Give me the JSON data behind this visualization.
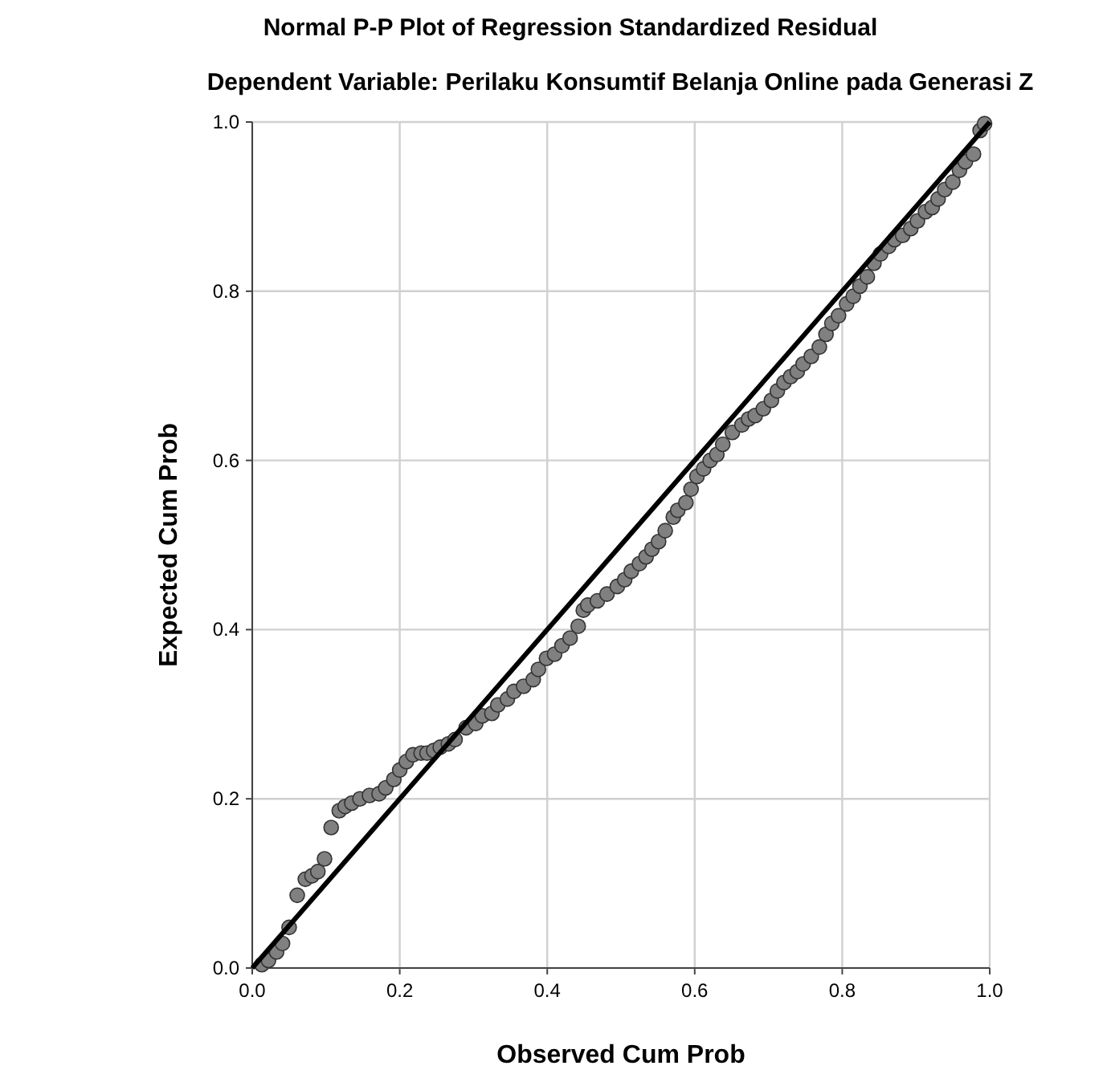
{
  "chart_data": {
    "type": "scatter",
    "title": "Normal P-P Plot of Regression Standardized Residual",
    "subtitle": "Dependent Variable: Perilaku Konsumtif Belanja Online pada Generasi Z",
    "xlabel": "Observed Cum Prob",
    "ylabel": "Expected Cum Prob",
    "xlim": [
      0,
      1
    ],
    "ylim": [
      0,
      1
    ],
    "xticks": [
      {
        "value": 0,
        "label": "0.0"
      },
      0.2,
      0.4,
      0.6,
      0.8,
      {
        "value": 1,
        "label": "1.0"
      }
    ],
    "yticks": [
      {
        "value": 0,
        "label": "0.0"
      },
      0.2,
      0.4,
      0.6,
      0.8,
      {
        "value": 1,
        "label": "1.0"
      }
    ],
    "grid": true,
    "series": [
      {
        "color": "#808080",
        "marker": "circle",
        "x": [
          0.013,
          0.022,
          0.033,
          0.041,
          0.05,
          0.061,
          0.072,
          0.081,
          0.089,
          0.098,
          0.107,
          0.118,
          0.126,
          0.135,
          0.146,
          0.159,
          0.172,
          0.181,
          0.192,
          0.2,
          0.209,
          0.218,
          0.229,
          0.237,
          0.246,
          0.255,
          0.266,
          0.275,
          0.29,
          0.303,
          0.312,
          0.325,
          0.333,
          0.346,
          0.355,
          0.368,
          0.381,
          0.388,
          0.399,
          0.41,
          0.42,
          0.431,
          0.442,
          0.449,
          0.455,
          0.468,
          0.481,
          0.495,
          0.505,
          0.514,
          0.525,
          0.534,
          0.542,
          0.551,
          0.56,
          0.571,
          0.577,
          0.588,
          0.595,
          0.603,
          0.612,
          0.621,
          0.63,
          0.638,
          0.651,
          0.664,
          0.673,
          0.682,
          0.693,
          0.704,
          0.712,
          0.721,
          0.73,
          0.739,
          0.747,
          0.758,
          0.769,
          0.778,
          0.786,
          0.795,
          0.806,
          0.815,
          0.824,
          0.834,
          0.843,
          0.852,
          0.863,
          0.871,
          0.882,
          0.893,
          0.902,
          0.913,
          0.922,
          0.93,
          0.939,
          0.95,
          0.959,
          0.967,
          0.978,
          0.987,
          0.993
        ],
        "values": [
          0.004,
          0.009,
          0.019,
          0.029,
          0.048,
          0.086,
          0.105,
          0.109,
          0.114,
          0.129,
          0.166,
          0.186,
          0.191,
          0.195,
          0.2,
          0.204,
          0.206,
          0.213,
          0.223,
          0.234,
          0.244,
          0.252,
          0.254,
          0.254,
          0.257,
          0.261,
          0.265,
          0.27,
          0.284,
          0.289,
          0.298,
          0.301,
          0.311,
          0.318,
          0.327,
          0.333,
          0.341,
          0.353,
          0.366,
          0.371,
          0.381,
          0.39,
          0.404,
          0.423,
          0.429,
          0.434,
          0.442,
          0.451,
          0.459,
          0.469,
          0.478,
          0.486,
          0.495,
          0.504,
          0.517,
          0.533,
          0.541,
          0.55,
          0.566,
          0.581,
          0.59,
          0.6,
          0.607,
          0.619,
          0.633,
          0.642,
          0.649,
          0.653,
          0.661,
          0.671,
          0.682,
          0.692,
          0.699,
          0.705,
          0.714,
          0.723,
          0.734,
          0.749,
          0.762,
          0.771,
          0.785,
          0.794,
          0.806,
          0.817,
          0.833,
          0.844,
          0.853,
          0.861,
          0.866,
          0.874,
          0.883,
          0.894,
          0.899,
          0.909,
          0.92,
          0.929,
          0.943,
          0.953,
          0.962,
          0.99,
          0.998
        ]
      },
      {
        "type": "line",
        "color": "#000000",
        "line_style": "solid",
        "x": [
          0,
          1
        ],
        "values": [
          0,
          1
        ]
      }
    ]
  }
}
